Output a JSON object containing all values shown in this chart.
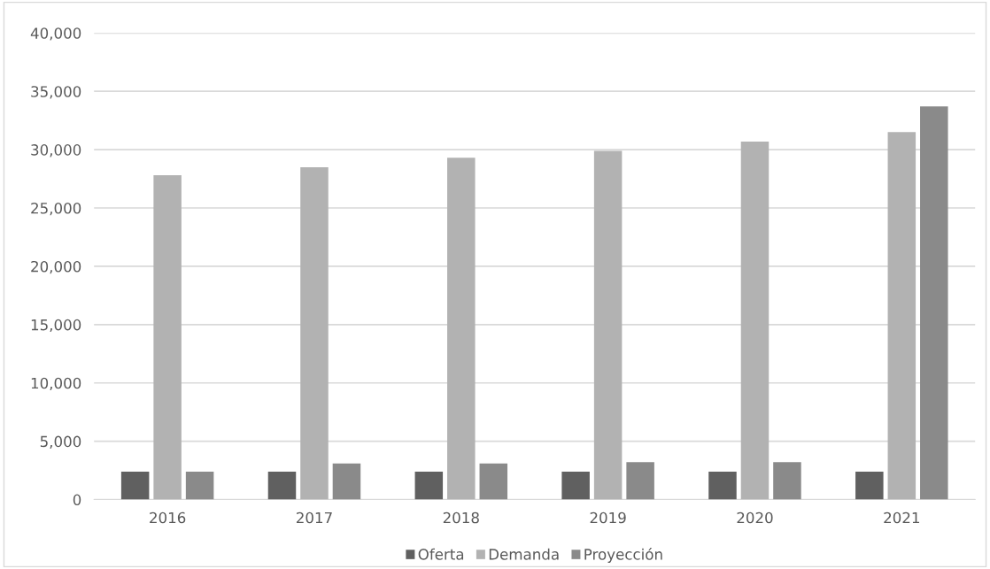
{
  "chart_data": {
    "type": "bar",
    "categories": [
      "2016",
      "2017",
      "2018",
      "2019",
      "2020",
      "2021"
    ],
    "series": [
      {
        "name": "Oferta",
        "color": "#606060",
        "values": [
          2400,
          2400,
          2400,
          2400,
          2400,
          2400
        ]
      },
      {
        "name": "Demanda",
        "color": "#b2b2b2",
        "values": [
          27800,
          28500,
          29300,
          29900,
          30700,
          31500
        ]
      },
      {
        "name": "Proyección",
        "color": "#8a8a8a",
        "values": [
          2400,
          3100,
          3100,
          3200,
          3200,
          33700
        ]
      }
    ],
    "ylim": [
      0,
      40000
    ],
    "yticks": [
      {
        "value": 0,
        "label": "0"
      },
      {
        "value": 5000,
        "label": "5,000"
      },
      {
        "value": 10000,
        "label": "10,000"
      },
      {
        "value": 15000,
        "label": "15,000"
      },
      {
        "value": 20000,
        "label": "20,000"
      },
      {
        "value": 25000,
        "label": "25,000"
      },
      {
        "value": 30000,
        "label": "30,000"
      },
      {
        "value": 35000,
        "label": "35,000"
      },
      {
        "value": 40000,
        "label": "40,000"
      }
    ],
    "grid": "y",
    "legend": "bottom"
  }
}
